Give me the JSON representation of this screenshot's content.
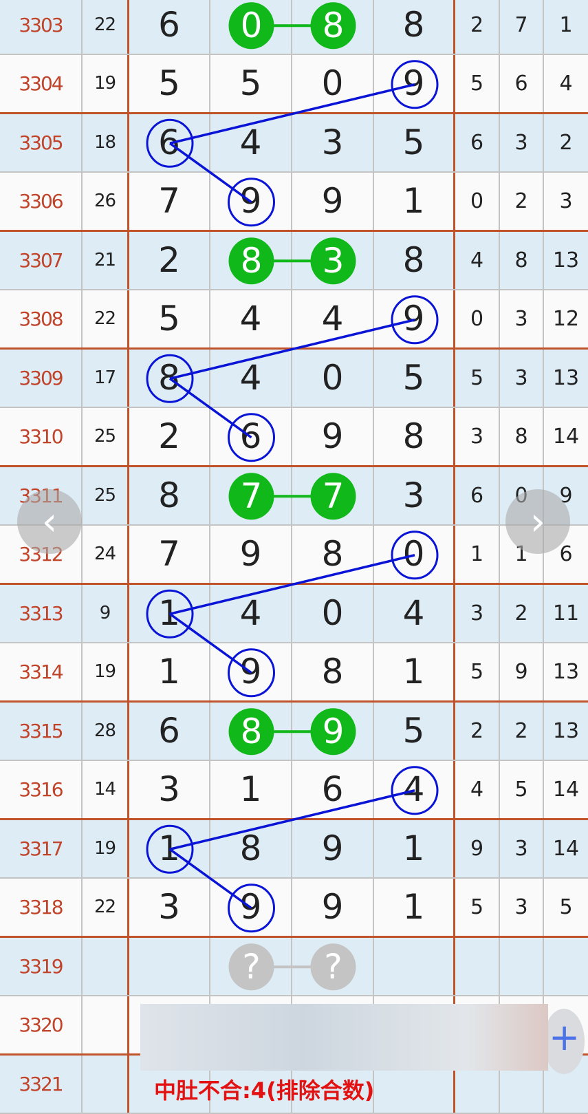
{
  "colors": {
    "issue": "#c0432a",
    "grid_major": "#c0532a",
    "row_alt": "#deedf5",
    "green": "#10b81a",
    "blue": "#0a14d6",
    "pending": "#c4c4c4",
    "note": "#e31212"
  },
  "rows": [
    {
      "issue": "3303",
      "sum": "22",
      "digits": [
        "6",
        "0",
        "8",
        "8"
      ],
      "stats": [
        "2",
        "7",
        "1"
      ]
    },
    {
      "issue": "3304",
      "sum": "19",
      "digits": [
        "5",
        "5",
        "0",
        "9"
      ],
      "stats": [
        "5",
        "6",
        "4"
      ]
    },
    {
      "issue": "3305",
      "sum": "18",
      "digits": [
        "6",
        "4",
        "3",
        "5"
      ],
      "stats": [
        "6",
        "3",
        "2"
      ]
    },
    {
      "issue": "3306",
      "sum": "26",
      "digits": [
        "7",
        "9",
        "9",
        "1"
      ],
      "stats": [
        "0",
        "2",
        "3"
      ]
    },
    {
      "issue": "3307",
      "sum": "21",
      "digits": [
        "2",
        "8",
        "3",
        "8"
      ],
      "stats": [
        "4",
        "8",
        "13"
      ]
    },
    {
      "issue": "3308",
      "sum": "22",
      "digits": [
        "5",
        "4",
        "4",
        "9"
      ],
      "stats": [
        "0",
        "3",
        "12"
      ]
    },
    {
      "issue": "3309",
      "sum": "17",
      "digits": [
        "8",
        "4",
        "0",
        "5"
      ],
      "stats": [
        "5",
        "3",
        "13"
      ]
    },
    {
      "issue": "3310",
      "sum": "25",
      "digits": [
        "2",
        "6",
        "9",
        "8"
      ],
      "stats": [
        "3",
        "8",
        "14"
      ]
    },
    {
      "issue": "3311",
      "sum": "25",
      "digits": [
        "8",
        "7",
        "7",
        "3"
      ],
      "stats": [
        "6",
        "0",
        "9"
      ]
    },
    {
      "issue": "3312",
      "sum": "24",
      "digits": [
        "7",
        "9",
        "8",
        "0"
      ],
      "stats": [
        "1",
        "1",
        "6"
      ]
    },
    {
      "issue": "3313",
      "sum": "9",
      "digits": [
        "1",
        "4",
        "0",
        "4"
      ],
      "stats": [
        "3",
        "2",
        "11"
      ]
    },
    {
      "issue": "3314",
      "sum": "19",
      "digits": [
        "1",
        "9",
        "8",
        "1"
      ],
      "stats": [
        "5",
        "9",
        "13"
      ]
    },
    {
      "issue": "3315",
      "sum": "28",
      "digits": [
        "6",
        "8",
        "9",
        "5"
      ],
      "stats": [
        "2",
        "2",
        "13"
      ]
    },
    {
      "issue": "3316",
      "sum": "14",
      "digits": [
        "3",
        "1",
        "6",
        "4"
      ],
      "stats": [
        "4",
        "5",
        "14"
      ]
    },
    {
      "issue": "3317",
      "sum": "19",
      "digits": [
        "1",
        "8",
        "9",
        "1"
      ],
      "stats": [
        "9",
        "3",
        "14"
      ]
    },
    {
      "issue": "3318",
      "sum": "22",
      "digits": [
        "3",
        "9",
        "9",
        "1"
      ],
      "stats": [
        "5",
        "3",
        "5"
      ]
    },
    {
      "issue": "3319",
      "sum": "",
      "digits": [
        "",
        "?",
        "?",
        ""
      ],
      "stats": [
        "",
        "",
        ""
      ]
    },
    {
      "issue": "3320",
      "sum": "",
      "digits": [
        "",
        "",
        "",
        ""
      ],
      "stats": [
        "",
        "",
        ""
      ]
    },
    {
      "issue": "3321",
      "sum": "",
      "digits": [
        "",
        "",
        "",
        ""
      ],
      "stats": [
        "",
        "",
        ""
      ]
    }
  ],
  "highlights": {
    "green_pairs": [
      {
        "row": 0,
        "cols": [
          1,
          2
        ]
      },
      {
        "row": 4,
        "cols": [
          1,
          2
        ]
      },
      {
        "row": 8,
        "cols": [
          1,
          2
        ]
      },
      {
        "row": 12,
        "cols": [
          1,
          2
        ]
      }
    ],
    "pending_pair": {
      "row": 16,
      "cols": [
        1,
        2
      ]
    },
    "blue_paths": [
      [
        [
          1,
          3
        ],
        [
          2,
          0
        ],
        [
          3,
          1
        ]
      ],
      [
        [
          5,
          3
        ],
        [
          6,
          0
        ],
        [
          7,
          1
        ]
      ],
      [
        [
          9,
          3
        ],
        [
          10,
          0
        ],
        [
          11,
          1
        ]
      ],
      [
        [
          13,
          3
        ],
        [
          14,
          0
        ],
        [
          15,
          1
        ]
      ]
    ]
  },
  "nav": {
    "prev_icon": "chevron-left-icon",
    "next_icon": "chevron-right-icon",
    "prev_glyph": "‹",
    "next_glyph": "›"
  },
  "fab": {
    "icon": "plus-icon",
    "glyph": "+"
  },
  "note": "中肚不合:4(排除合数)"
}
